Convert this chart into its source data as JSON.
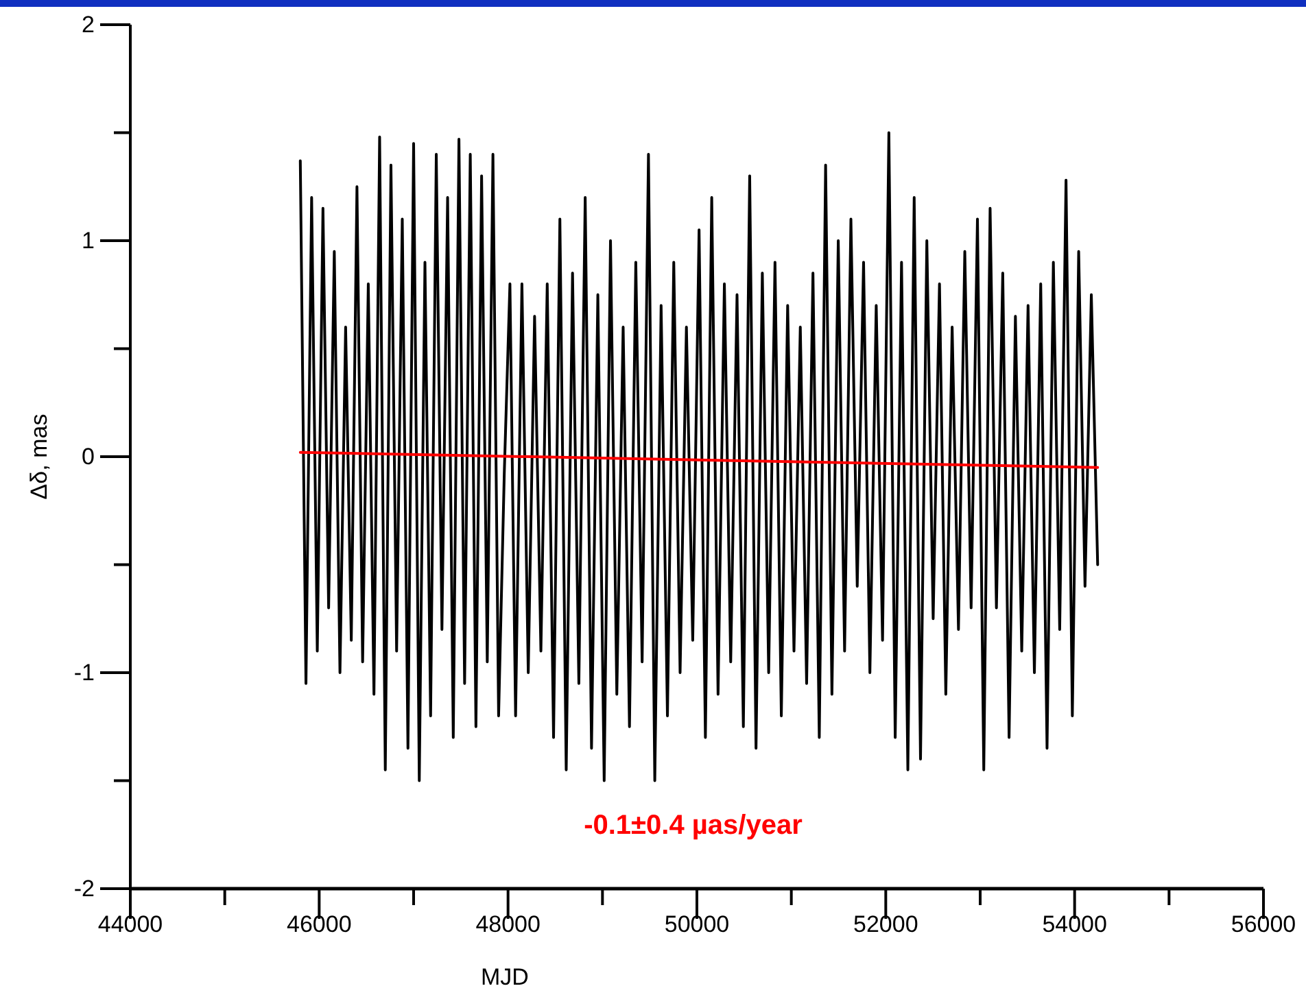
{
  "chart_data": {
    "type": "line",
    "xlabel": "MJD",
    "ylabel": "Δδ, mas",
    "xlim": [
      44000,
      56000
    ],
    "ylim": [
      -2,
      2
    ],
    "xticks": [
      44000,
      {
        "value": 45000,
        "label": null
      },
      46000,
      {
        "value": 47000,
        "label": null
      },
      48000,
      {
        "value": 49000,
        "label": null
      },
      50000,
      {
        "value": 51000,
        "label": null
      },
      52000,
      {
        "value": 53000,
        "label": null
      },
      54000,
      {
        "value": 55000,
        "label": null
      },
      56000
    ],
    "yticks": [
      -2,
      {
        "value": -1.5,
        "label": null
      },
      -1,
      {
        "value": -0.5,
        "label": null
      },
      0,
      {
        "value": 0.5,
        "label": null
      },
      1,
      {
        "value": 1.5,
        "label": null
      },
      2
    ],
    "grid": false,
    "annotations": [
      "-0.1±0.4 µas/year"
    ],
    "series": [
      {
        "color": "#000000",
        "x": [
          45800,
          45860,
          45920,
          45980,
          46040,
          46100,
          46160,
          46220,
          46280,
          46340,
          46400,
          46460,
          46520,
          46580,
          46640,
          46700,
          46760,
          46820,
          46880,
          46940,
          47000,
          47060,
          47120,
          47180,
          47240,
          47300,
          47360,
          47420,
          47480,
          47540,
          47600,
          47660,
          47720,
          47780,
          47840,
          47900,
          47960,
          48020,
          48080,
          48147,
          48214,
          48281,
          48348,
          48415,
          48482,
          48549,
          48616,
          48683,
          48750,
          48817,
          48884,
          48951,
          49018,
          49085,
          49152,
          49219,
          49286,
          49353,
          49420,
          49487,
          49554,
          49621,
          49688,
          49755,
          49822,
          49889,
          49956,
          50023,
          50090,
          50157,
          50224,
          50291,
          50358,
          50425,
          50492,
          50559,
          50626,
          50693,
          50760,
          50827,
          50894,
          50961,
          51028,
          51095,
          51162,
          51229,
          51296,
          51363,
          51430,
          51497,
          51564,
          51631,
          51698,
          51765,
          51832,
          51899,
          51966,
          52033,
          52100,
          52167,
          52234,
          52301,
          52368,
          52435,
          52502,
          52569,
          52636,
          52703,
          52770,
          52837,
          52904,
          52971,
          53038,
          53105,
          53172,
          53239,
          53306,
          53373,
          53440,
          53507,
          53574,
          53641,
          53708,
          53775,
          53842,
          53909,
          53976,
          54043,
          54110,
          54177,
          54244
        ],
        "values": [
          1.37,
          -1.05,
          1.2,
          -0.9,
          1.15,
          -0.7,
          0.95,
          -1.0,
          0.6,
          -0.85,
          1.25,
          -0.95,
          0.8,
          -1.1,
          1.48,
          -1.45,
          1.35,
          -0.9,
          1.1,
          -1.35,
          1.45,
          -1.5,
          0.9,
          -1.2,
          1.4,
          -0.8,
          1.2,
          -1.3,
          1.47,
          -1.05,
          1.4,
          -1.25,
          1.3,
          -0.95,
          1.4,
          -1.2,
          -0.08,
          0.8,
          -1.2,
          0.8,
          -1.0,
          0.65,
          -0.9,
          0.8,
          -1.3,
          1.1,
          -1.45,
          0.85,
          -1.05,
          1.2,
          -1.35,
          0.75,
          -1.5,
          1.0,
          -1.1,
          0.6,
          -1.25,
          0.9,
          -0.95,
          1.4,
          -1.5,
          0.7,
          -1.2,
          0.9,
          -1.0,
          0.6,
          -0.85,
          1.05,
          -1.3,
          1.2,
          -1.1,
          0.8,
          -0.95,
          0.75,
          -1.25,
          1.3,
          -1.35,
          0.85,
          -1.0,
          0.9,
          -1.2,
          0.7,
          -0.9,
          0.6,
          -1.05,
          0.85,
          -1.3,
          1.35,
          -1.1,
          1.0,
          -0.9,
          1.1,
          -0.6,
          0.9,
          -1.0,
          0.7,
          -0.85,
          1.5,
          -1.3,
          0.9,
          -1.45,
          1.2,
          -1.4,
          1.0,
          -0.75,
          0.8,
          -1.1,
          0.6,
          -0.8,
          0.95,
          -0.7,
          1.1,
          -1.45,
          1.15,
          -0.7,
          0.85,
          -1.3,
          0.65,
          -0.9,
          0.7,
          -1.0,
          0.8,
          -1.35,
          0.9,
          -0.8,
          1.28,
          -1.2,
          0.95,
          -0.6,
          0.75,
          -0.5
        ]
      },
      {
        "type": "line",
        "color": "#ff0000",
        "x": [
          45800,
          54244
        ],
        "values": [
          0.02,
          -0.05
        ]
      }
    ]
  }
}
